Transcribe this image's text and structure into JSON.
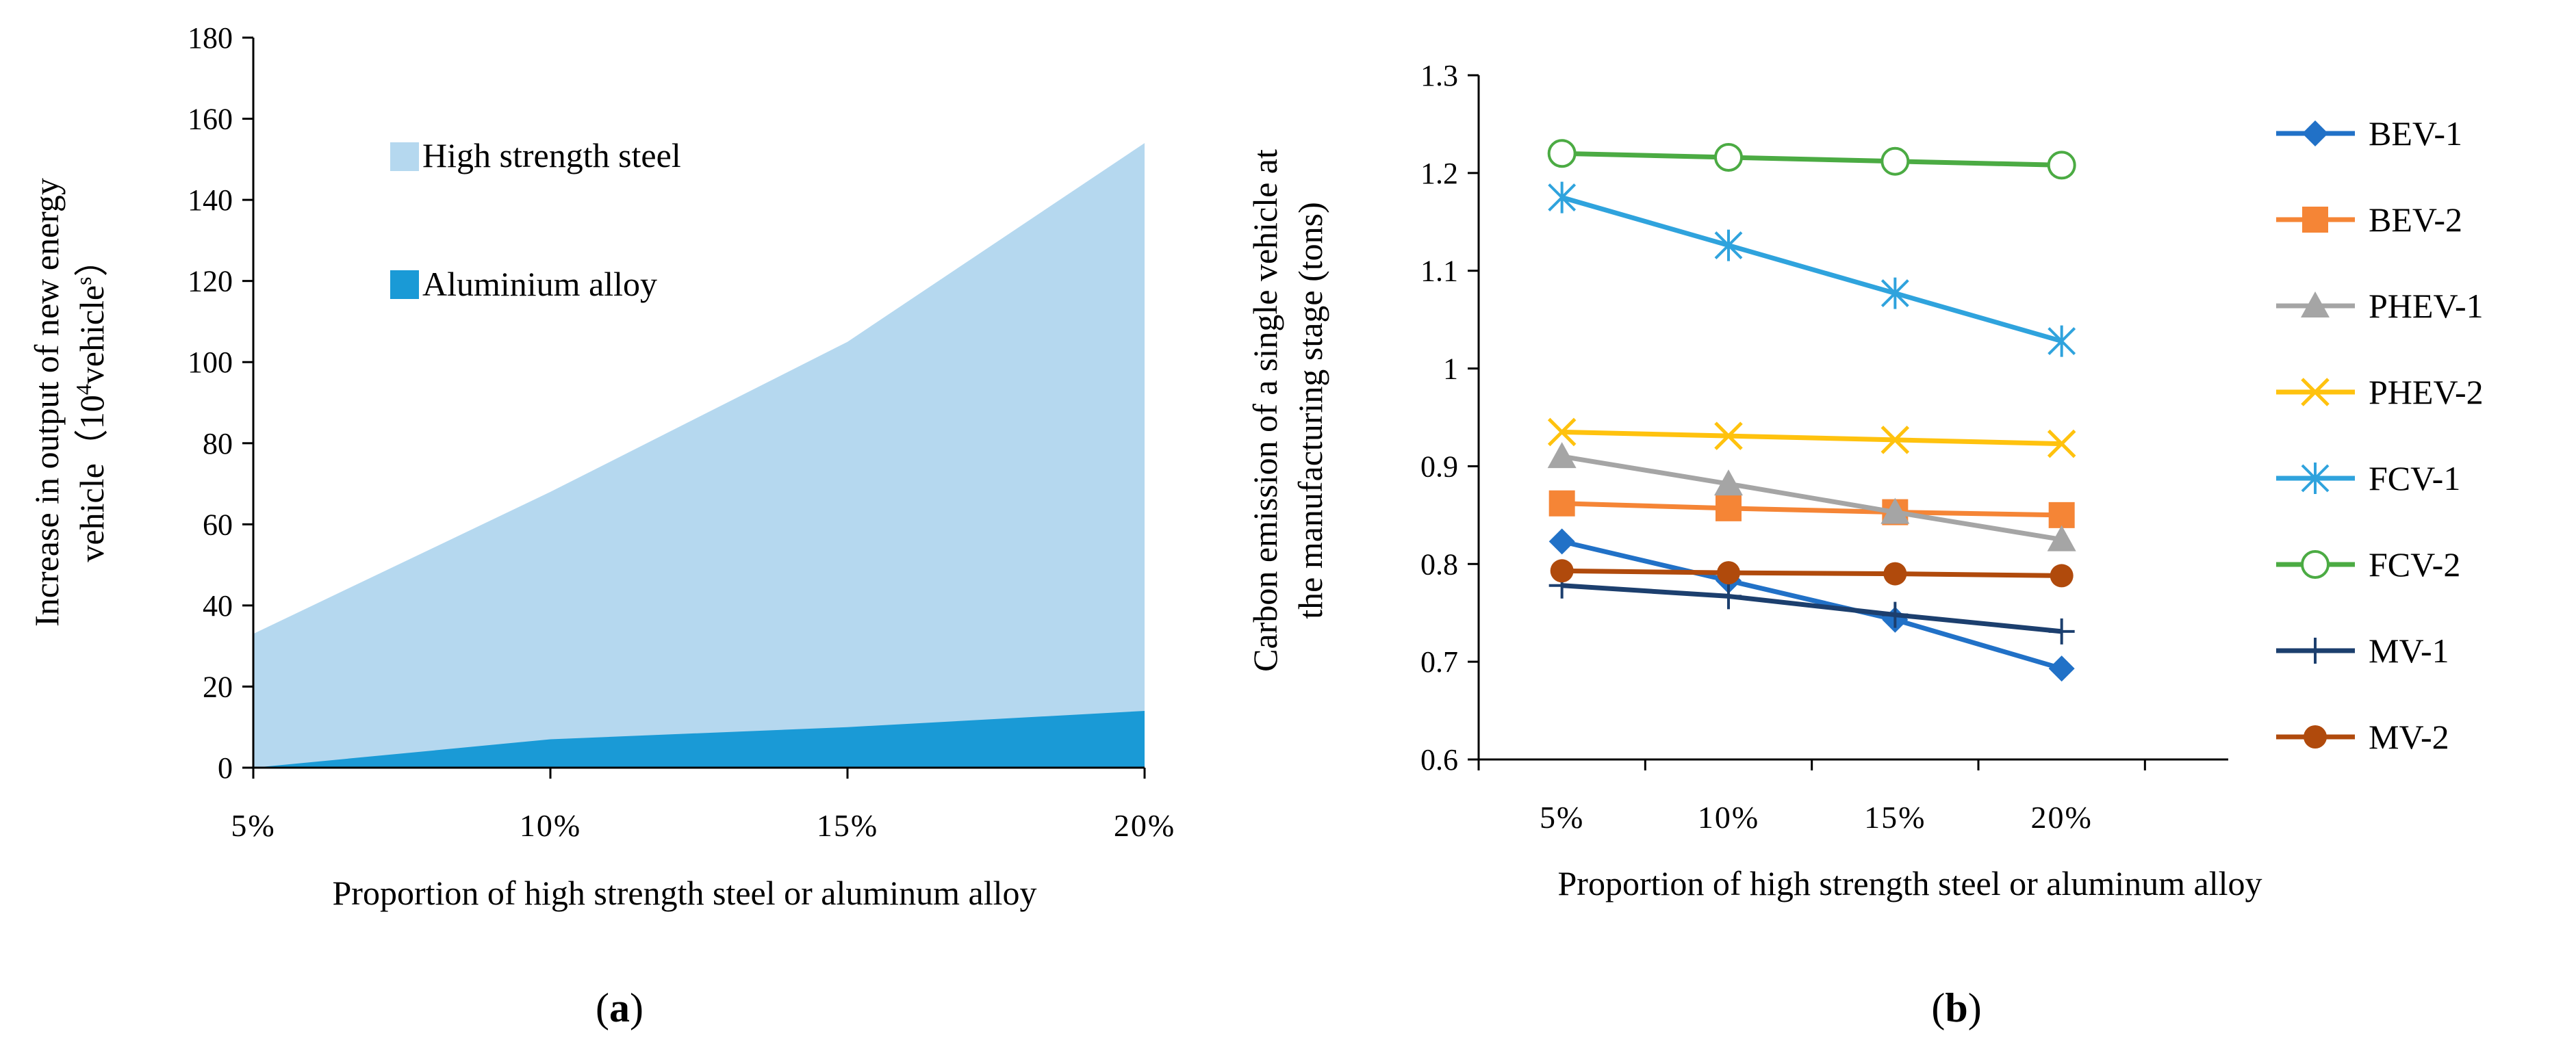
{
  "chart_data": [
    {
      "type": "area",
      "panel_label": "a",
      "categories": [
        "5%",
        "10%",
        "15%",
        "20%"
      ],
      "series": [
        {
          "name": "High strength steel",
          "color": "#b5d8ef",
          "values": [
            33,
            68,
            105,
            154
          ]
        },
        {
          "name": "Aluminium alloy",
          "color": "#1a9ad6",
          "values": [
            0,
            7,
            10,
            14
          ]
        }
      ],
      "stacked": false,
      "ylabel_line1": "Increase in output of new energy",
      "ylabel_line2": "vehicle（10",
      "ylabel_sup1": "4",
      "ylabel_mid": "vehicle",
      "ylabel_sup2": "s",
      "ylabel_end": "）",
      "xlabel": "Proportion of high strength steel or aluminum alloy",
      "ylim": [
        0,
        180
      ],
      "yticks": [
        0,
        20,
        40,
        60,
        80,
        100,
        120,
        140,
        160,
        180
      ],
      "grid": false,
      "legend_position": "top-left"
    },
    {
      "type": "line",
      "panel_label": "b",
      "categories": [
        "5%",
        "10%",
        "15%",
        "20%"
      ],
      "series": [
        {
          "name": "BEV-1",
          "color": "#2171c7",
          "marker": "diamond",
          "values": [
            0.823,
            0.783,
            0.743,
            0.693
          ]
        },
        {
          "name": "BEV-2",
          "color": "#f58536",
          "marker": "square",
          "values": [
            0.862,
            0.857,
            0.853,
            0.85
          ]
        },
        {
          "name": "PHEV-1",
          "color": "#a5a5a5",
          "marker": "triangle",
          "values": [
            0.91,
            0.882,
            0.853,
            0.825
          ]
        },
        {
          "name": "PHEV-2",
          "color": "#ffc20e",
          "marker": "x",
          "values": [
            0.935,
            0.931,
            0.927,
            0.923
          ]
        },
        {
          "name": "FCV-1",
          "color": "#2fa3dd",
          "marker": "asterisk",
          "values": [
            1.175,
            1.126,
            1.077,
            1.028
          ]
        },
        {
          "name": "FCV-2",
          "color": "#4bab43",
          "marker": "circle-open",
          "values": [
            1.22,
            1.216,
            1.212,
            1.208
          ]
        },
        {
          "name": "MV-1",
          "color": "#1c3f6e",
          "marker": "plus",
          "values": [
            0.778,
            0.767,
            0.748,
            0.731
          ]
        },
        {
          "name": "MV-2",
          "color": "#b04a0c",
          "marker": "circle",
          "values": [
            0.793,
            0.791,
            0.79,
            0.788
          ]
        }
      ],
      "ylabel_line1": "Carbon emission of a single vehicle at",
      "ylabel_line2": "the manufacturing stage (tons)",
      "xlabel": "Proportion of high strength steel or aluminum alloy",
      "ylim": [
        0.6,
        1.3
      ],
      "yticks": [
        0.6,
        0.7,
        0.8,
        0.9,
        1,
        1.1,
        1.2,
        1.3
      ],
      "grid": false,
      "legend_position": "right"
    }
  ]
}
